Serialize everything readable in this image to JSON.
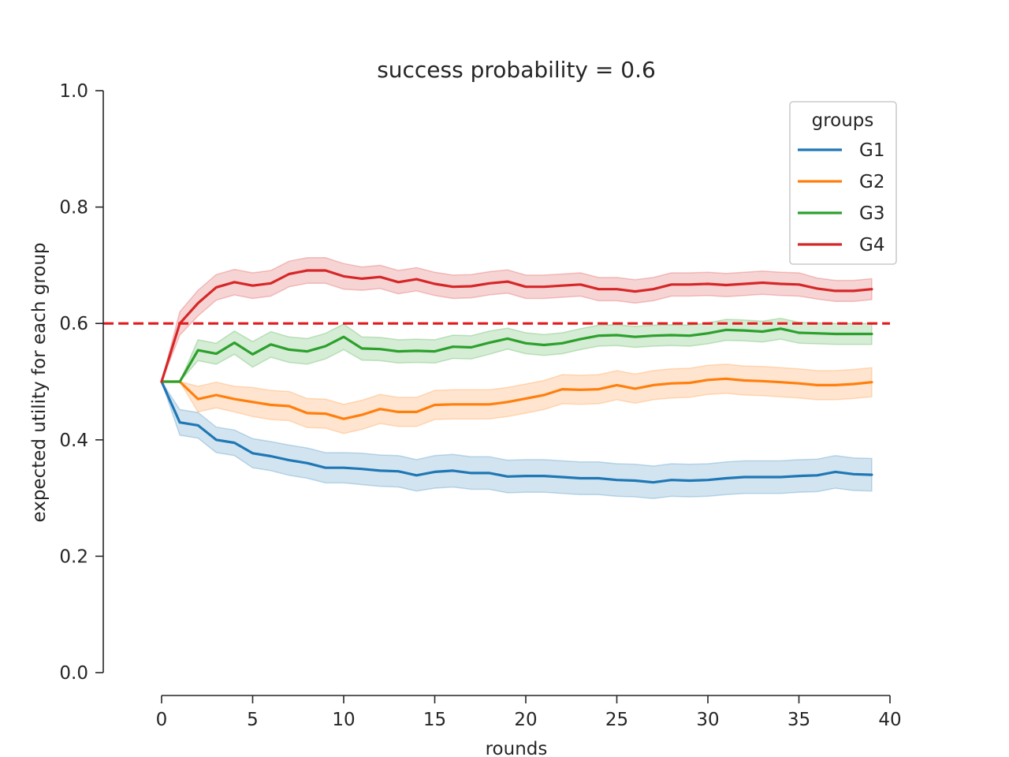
{
  "chart_data": {
    "type": "line",
    "title": "success probability = 0.6",
    "xlabel": "rounds",
    "ylabel": "expected utility for each group",
    "xlim": [
      -3.2,
      40
    ],
    "ylim": [
      0.0,
      1.0
    ],
    "xticks": [
      0,
      5,
      10,
      15,
      20,
      25,
      30,
      35,
      40
    ],
    "yticks": [
      0.0,
      0.2,
      0.4,
      0.6,
      0.8,
      1.0
    ],
    "xtick_labels": [
      "0",
      "5",
      "10",
      "15",
      "20",
      "25",
      "30",
      "35",
      "40"
    ],
    "ytick_labels": [
      "0.0",
      "0.2",
      "0.4",
      "0.6",
      "0.8",
      "1.0"
    ],
    "grid": false,
    "legend": {
      "title": "groups",
      "placement": "top-right"
    },
    "reference_line": {
      "y": 0.6,
      "color": "#e41a1c",
      "style": "dashed"
    },
    "x": [
      0,
      1,
      2,
      3,
      4,
      5,
      6,
      7,
      8,
      9,
      10,
      11,
      12,
      13,
      14,
      15,
      16,
      17,
      18,
      19,
      20,
      21,
      22,
      23,
      24,
      25,
      26,
      27,
      28,
      29,
      30,
      31,
      32,
      33,
      34,
      35,
      36,
      37,
      38,
      39
    ],
    "series": [
      {
        "name": "G1",
        "color": "#1f77b4",
        "values": [
          0.5,
          0.43,
          0.425,
          0.4,
          0.395,
          0.377,
          0.372,
          0.365,
          0.36,
          0.352,
          0.352,
          0.35,
          0.347,
          0.346,
          0.339,
          0.345,
          0.347,
          0.343,
          0.343,
          0.337,
          0.338,
          0.338,
          0.336,
          0.334,
          0.334,
          0.331,
          0.33,
          0.327,
          0.331,
          0.33,
          0.331,
          0.334,
          0.336,
          0.336,
          0.336,
          0.338,
          0.339,
          0.345,
          0.341,
          0.34
        ],
        "ci_half_width": [
          0.0,
          0.022,
          0.022,
          0.022,
          0.022,
          0.025,
          0.025,
          0.026,
          0.026,
          0.026,
          0.026,
          0.027,
          0.027,
          0.027,
          0.027,
          0.028,
          0.028,
          0.028,
          0.028,
          0.028,
          0.028,
          0.028,
          0.028,
          0.028,
          0.028,
          0.028,
          0.028,
          0.028,
          0.028,
          0.028,
          0.028,
          0.028,
          0.028,
          0.028,
          0.028,
          0.028,
          0.028,
          0.028,
          0.028,
          0.028
        ]
      },
      {
        "name": "G2",
        "color": "#ff7f0e",
        "values": [
          0.5,
          0.5,
          0.47,
          0.477,
          0.47,
          0.465,
          0.46,
          0.458,
          0.446,
          0.445,
          0.436,
          0.443,
          0.453,
          0.448,
          0.448,
          0.46,
          0.461,
          0.461,
          0.461,
          0.465,
          0.471,
          0.477,
          0.487,
          0.486,
          0.487,
          0.494,
          0.488,
          0.494,
          0.497,
          0.498,
          0.503,
          0.505,
          0.502,
          0.501,
          0.499,
          0.497,
          0.494,
          0.494,
          0.496,
          0.499
        ],
        "ci_half_width": [
          0.0,
          0.0,
          0.022,
          0.022,
          0.022,
          0.025,
          0.025,
          0.025,
          0.025,
          0.025,
          0.025,
          0.025,
          0.025,
          0.025,
          0.025,
          0.025,
          0.025,
          0.025,
          0.025,
          0.025,
          0.025,
          0.025,
          0.025,
          0.025,
          0.025,
          0.025,
          0.025,
          0.025,
          0.025,
          0.025,
          0.025,
          0.025,
          0.025,
          0.025,
          0.025,
          0.025,
          0.025,
          0.025,
          0.025,
          0.025
        ]
      },
      {
        "name": "G3",
        "color": "#2ca02c",
        "values": [
          0.5,
          0.5,
          0.554,
          0.548,
          0.567,
          0.547,
          0.564,
          0.555,
          0.552,
          0.561,
          0.577,
          0.557,
          0.556,
          0.552,
          0.553,
          0.552,
          0.56,
          0.559,
          0.567,
          0.574,
          0.566,
          0.563,
          0.566,
          0.573,
          0.579,
          0.58,
          0.577,
          0.579,
          0.58,
          0.579,
          0.583,
          0.589,
          0.588,
          0.586,
          0.591,
          0.584,
          0.583,
          0.582,
          0.582,
          0.582
        ],
        "ci_half_width": [
          0.0,
          0.0,
          0.018,
          0.018,
          0.02,
          0.022,
          0.022,
          0.022,
          0.022,
          0.022,
          0.022,
          0.02,
          0.02,
          0.02,
          0.02,
          0.02,
          0.02,
          0.02,
          0.02,
          0.018,
          0.018,
          0.018,
          0.018,
          0.018,
          0.018,
          0.018,
          0.018,
          0.018,
          0.018,
          0.018,
          0.018,
          0.018,
          0.018,
          0.018,
          0.018,
          0.018,
          0.018,
          0.018,
          0.018,
          0.018
        ]
      },
      {
        "name": "G4",
        "color": "#d62728",
        "values": [
          0.5,
          0.6,
          0.635,
          0.662,
          0.671,
          0.665,
          0.669,
          0.685,
          0.691,
          0.691,
          0.681,
          0.677,
          0.68,
          0.671,
          0.676,
          0.668,
          0.663,
          0.664,
          0.669,
          0.672,
          0.663,
          0.663,
          0.665,
          0.667,
          0.659,
          0.659,
          0.655,
          0.659,
          0.667,
          0.667,
          0.668,
          0.666,
          0.668,
          0.67,
          0.668,
          0.667,
          0.66,
          0.656,
          0.656,
          0.659
        ],
        "ci_half_width": [
          0.0,
          0.02,
          0.022,
          0.022,
          0.022,
          0.022,
          0.022,
          0.022,
          0.022,
          0.022,
          0.022,
          0.02,
          0.02,
          0.02,
          0.02,
          0.02,
          0.02,
          0.02,
          0.02,
          0.02,
          0.02,
          0.02,
          0.02,
          0.02,
          0.02,
          0.02,
          0.02,
          0.02,
          0.02,
          0.02,
          0.02,
          0.02,
          0.02,
          0.02,
          0.02,
          0.02,
          0.018,
          0.018,
          0.018,
          0.018
        ]
      }
    ]
  }
}
